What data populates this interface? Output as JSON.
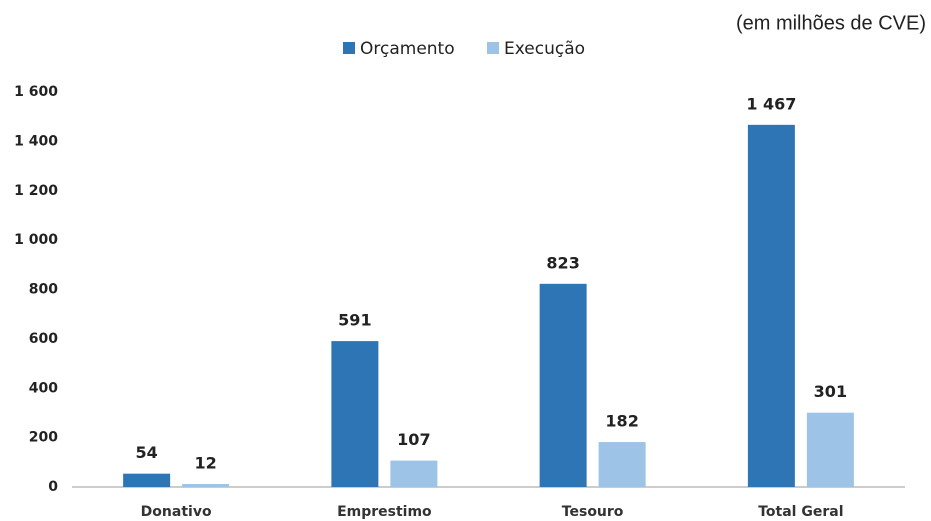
{
  "chart_data": {
    "type": "bar",
    "subtitle": "(em milhões de CVE)",
    "categories": [
      "Donativo",
      "Emprestimo",
      "Tesouro",
      "Total Geral"
    ],
    "series": [
      {
        "name": "Orçamento",
        "color": "#2e75b6",
        "values": [
          54,
          591,
          823,
          1467
        ],
        "value_labels": [
          "54",
          "591",
          "823",
          "1 467"
        ]
      },
      {
        "name": "Execução",
        "color": "#9dc3e6",
        "values": [
          12,
          107,
          182,
          301
        ],
        "value_labels": [
          "12",
          "107",
          "182",
          "301"
        ]
      }
    ],
    "ylim": [
      0,
      1600
    ],
    "yticks": [
      0,
      200,
      400,
      600,
      800,
      {
        "value": 1000,
        "label": "1 000"
      },
      {
        "value": 1200,
        "label": "1 200"
      },
      {
        "value": 1400,
        "label": "1 400"
      },
      {
        "value": 1600,
        "label": "1 600"
      }
    ],
    "grid": false,
    "legend": "top"
  }
}
